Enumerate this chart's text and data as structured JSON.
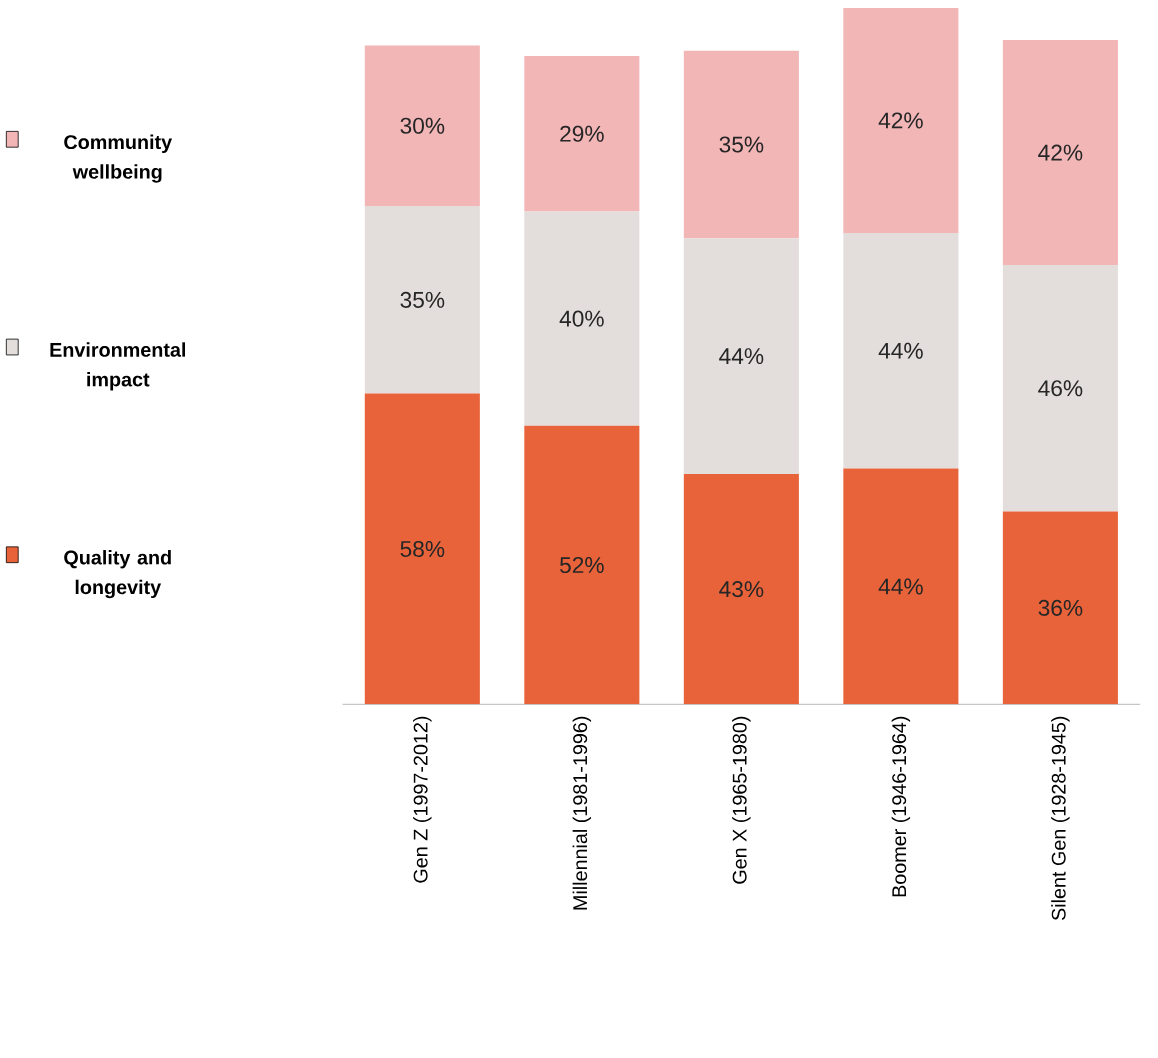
{
  "chart_data": {
    "type": "bar",
    "stacked": true,
    "legend": "left",
    "categories": [
      "Gen Z (1997-2012)",
      "Millennial (1981-1996)",
      "Gen X (1965-1980)",
      "Boomer (1946-1964)",
      "Silent Gen (1928-1945)"
    ],
    "series": [
      {
        "name": "Quality and longevity",
        "color": "#e9633a",
        "values": [
          58,
          52,
          43,
          44,
          36
        ],
        "value_labels": [
          "58%",
          "52%",
          "43%",
          "44%",
          "36%"
        ]
      },
      {
        "name": "Environmental impact",
        "color": "#e3dedc",
        "values": [
          35,
          40,
          44,
          44,
          46
        ],
        "value_labels": [
          "35%",
          "40%",
          "44%",
          "44%",
          "46%"
        ]
      },
      {
        "name": "Community wellbeing",
        "color": "#f2b6b7",
        "values": [
          30,
          29,
          35,
          42,
          42
        ],
        "value_labels": [
          "30%",
          "29%",
          "35%",
          "42%",
          "42%"
        ]
      }
    ]
  }
}
